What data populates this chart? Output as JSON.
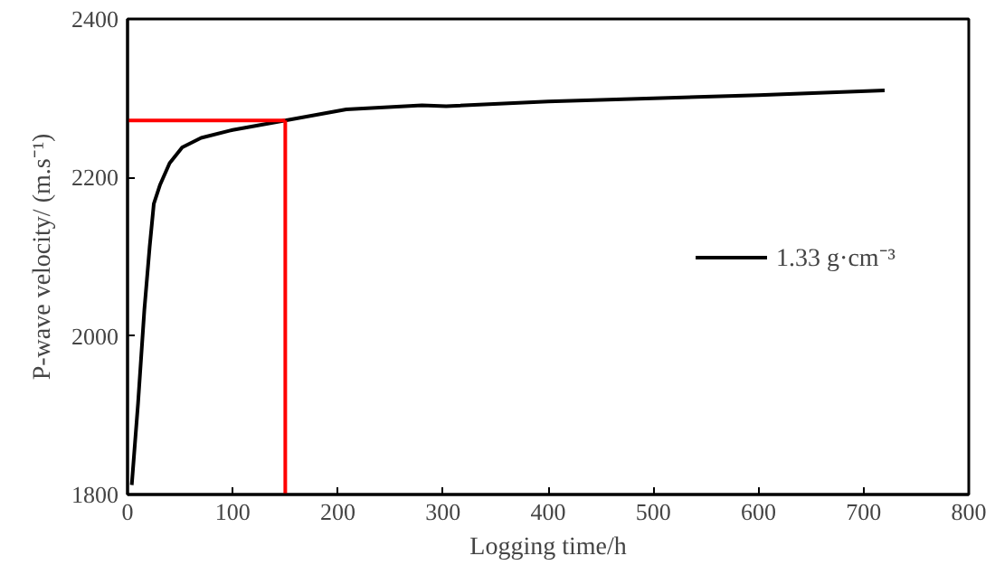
{
  "chart_data": {
    "type": "line",
    "xlabel": "Logging time/h",
    "ylabel": "P-wave velocity/ (m.s⁻¹)",
    "xlim": [
      0,
      800
    ],
    "xticks": [
      0,
      100,
      200,
      300,
      400,
      500,
      600,
      700,
      800
    ],
    "ylim": [
      1800,
      2400
    ],
    "yticks": [
      1800,
      2000,
      2200,
      2400
    ],
    "grid": false,
    "legend": "right",
    "series": [
      {
        "name": "1.33 g·cm⁻³",
        "color": "#000000",
        "x": [
          4,
          10,
          16,
          21,
          25,
          31,
          40,
          52,
          70,
          100,
          150,
          208,
          280,
          303,
          400,
          500,
          600,
          720
        ],
        "values": [
          1812,
          1915,
          2033,
          2112,
          2167,
          2191,
          2218,
          2238,
          2250,
          2260,
          2272,
          2286,
          2291,
          2290,
          2296,
          2300,
          2304,
          2310
        ]
      }
    ],
    "ref_lines": [
      {
        "axis": "x",
        "value": 150,
        "color": "#ff0000"
      },
      {
        "axis": "y",
        "value": 2272,
        "color": "#ff0000"
      }
    ]
  }
}
